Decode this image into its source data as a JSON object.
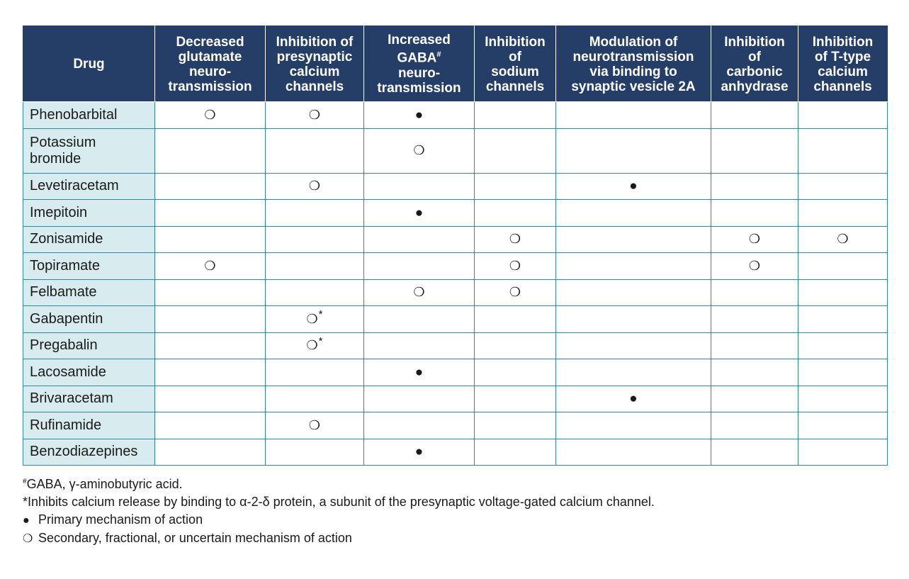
{
  "table": {
    "headers": [
      {
        "key": "drug",
        "label": "Drug"
      },
      {
        "key": "glutamate",
        "label": "Decreased glutamate neuro-transmission",
        "lines": [
          "Decreased",
          "glutamate",
          "neuro-",
          "transmission"
        ]
      },
      {
        "key": "presyn_ca",
        "label": "Inhibition of presynaptic calcium channels",
        "lines": [
          "Inhibition of",
          "presynaptic",
          "calcium",
          "channels"
        ]
      },
      {
        "key": "gaba",
        "label": "Increased GABA# neuro-transmission",
        "lines": [
          "Increased",
          "GABA",
          "neuro-",
          "transmission"
        ],
        "sup": "#"
      },
      {
        "key": "sodium",
        "label": "Inhibition of sodium channels",
        "lines": [
          "Inhibition",
          "of",
          "sodium",
          "channels"
        ]
      },
      {
        "key": "sv2a",
        "label": "Modulation of neurotransmission via binding to synaptic vesicle 2A",
        "lines": [
          "Modulation of",
          "neurotransmission",
          "via binding to",
          "synaptic vesicle 2A"
        ]
      },
      {
        "key": "carbonic",
        "label": "Inhibition of carbonic anhydrase",
        "lines": [
          "Inhibition",
          "of",
          "carbonic",
          "anhydrase"
        ]
      },
      {
        "key": "ttype",
        "label": "Inhibition of T-type calcium channels",
        "lines": [
          "Inhibition",
          "of T-type",
          "calcium",
          "channels"
        ]
      }
    ],
    "rows": [
      {
        "drug": "Phenobarbital",
        "cells": [
          "secondary",
          "secondary",
          "primary",
          "",
          "",
          "",
          ""
        ]
      },
      {
        "drug": "Potassium bromide",
        "cells": [
          "",
          "",
          "secondary",
          "",
          "",
          "",
          ""
        ]
      },
      {
        "drug": "Levetiracetam",
        "cells": [
          "",
          "secondary",
          "",
          "",
          "primary",
          "",
          ""
        ]
      },
      {
        "drug": "Imepitoin",
        "cells": [
          "",
          "",
          "primary",
          "",
          "",
          "",
          ""
        ]
      },
      {
        "drug": "Zonisamide",
        "cells": [
          "",
          "",
          "",
          "secondary",
          "",
          "secondary",
          "secondary"
        ]
      },
      {
        "drug": "Topiramate",
        "cells": [
          "secondary",
          "",
          "",
          "secondary",
          "",
          "secondary",
          ""
        ]
      },
      {
        "drug": "Felbamate",
        "cells": [
          "",
          "",
          "secondary",
          "secondary",
          "",
          "",
          ""
        ]
      },
      {
        "drug": "Gabapentin",
        "cells": [
          "",
          "secondary*",
          "",
          "",
          "",
          "",
          ""
        ]
      },
      {
        "drug": "Pregabalin",
        "cells": [
          "",
          "secondary*",
          "",
          "",
          "",
          "",
          ""
        ]
      },
      {
        "drug": "Lacosamide",
        "cells": [
          "",
          "",
          "primary",
          "",
          "",
          "",
          ""
        ]
      },
      {
        "drug": "Brivaracetam",
        "cells": [
          "",
          "",
          "",
          "",
          "primary",
          "",
          ""
        ]
      },
      {
        "drug": "Rufinamide",
        "cells": [
          "",
          "secondary",
          "",
          "",
          "",
          "",
          ""
        ]
      },
      {
        "drug": "Benzodiazepines",
        "cells": [
          "",
          "",
          "primary",
          "",
          "",
          "",
          ""
        ]
      }
    ],
    "symbols": {
      "primary": "●",
      "secondary": "❍",
      "star": "*"
    }
  },
  "footnotes": {
    "gaba_sup": "#",
    "gaba_text": "GABA, γ-aminobutyric acid.",
    "star_text": "*Inhibits calcium release by binding to α-2-δ protein, a subunit of the presynaptic voltage-gated calcium channel.",
    "legend_primary_symbol": "●",
    "legend_primary": "Primary mechanism of action",
    "legend_secondary_symbol": "❍",
    "legend_secondary": "Secondary, fractional, or uncertain mechanism of action"
  },
  "colors": {
    "header_bg": "#253e68",
    "drug_cell_bg": "#d8ebef",
    "grid": "#2a8c9a"
  }
}
